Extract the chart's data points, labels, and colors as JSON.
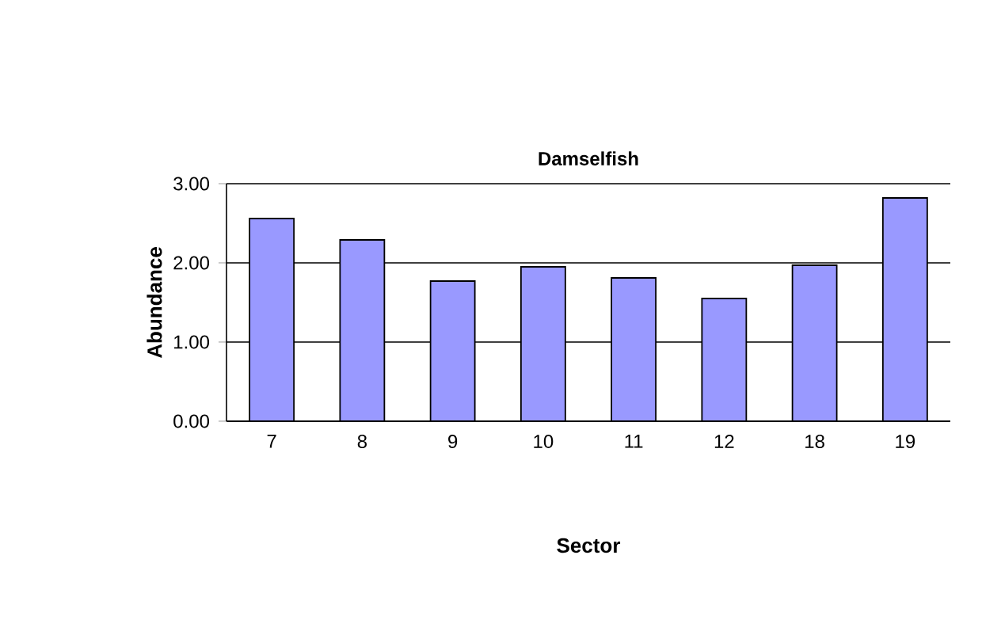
{
  "chart_data": {
    "type": "bar",
    "title": "Damselfish",
    "xlabel": "Sector",
    "ylabel": "Abundance",
    "categories": [
      "7",
      "8",
      "9",
      "10",
      "11",
      "12",
      "18",
      "19"
    ],
    "values": [
      2.56,
      2.29,
      1.77,
      1.95,
      1.81,
      1.55,
      1.97,
      2.82
    ],
    "color": "#9999ff",
    "ylim": [
      0,
      3
    ],
    "yticks": [
      {
        "value": 0,
        "label": "0.00"
      },
      {
        "value": 1,
        "label": "1.00"
      },
      {
        "value": 2,
        "label": "2.00"
      },
      {
        "value": 3,
        "label": "3.00"
      }
    ],
    "grid": "y"
  }
}
